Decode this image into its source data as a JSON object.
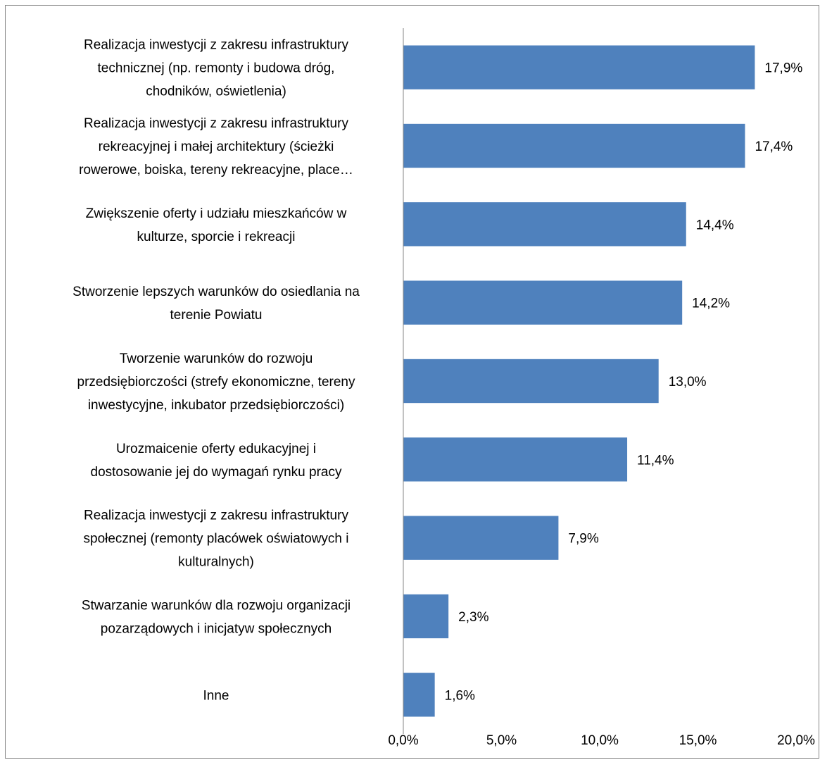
{
  "chart_data": {
    "type": "bar",
    "orientation": "horizontal",
    "title": "",
    "xlabel": "",
    "ylabel": "",
    "categories": [
      [
        "Realizacja inwestycji z zakresu infrastruktury",
        "technicznej (np. remonty i budowa dróg,",
        "chodników, oświetlenia)"
      ],
      [
        "Realizacja inwestycji z zakresu infrastruktury",
        "rekreacyjnej i małej architektury (ścieżki",
        "rowerowe, boiska, tereny rekreacyjne, place…"
      ],
      [
        "Zwiększenie oferty i udziału mieszkańców w",
        "kulturze, sporcie i rekreacji"
      ],
      [
        "Stworzenie lepszych warunków do osiedlania na",
        "terenie Powiatu"
      ],
      [
        "Tworzenie warunków do rozwoju",
        "przedsiębiorczości (strefy ekonomiczne, tereny",
        "inwestycyjne, inkubator przedsiębiorczości)"
      ],
      [
        "Urozmaicenie oferty edukacyjnej i",
        "dostosowanie jej do wymagań rynku pracy"
      ],
      [
        "Realizacja inwestycji z zakresu infrastruktury",
        "społecznej (remonty placówek oświatowych i",
        "kulturalnych)"
      ],
      [
        "Stwarzanie warunków dla rozwoju organizacji",
        "pozarządowych i inicjatyw społecznych"
      ],
      [
        "Inne"
      ]
    ],
    "values": [
      17.9,
      17.4,
      14.4,
      14.2,
      13.0,
      11.4,
      7.9,
      2.3,
      1.6
    ],
    "value_labels": [
      "17,9%",
      "17,4%",
      "14,4%",
      "14,2%",
      "13,0%",
      "11,4%",
      "7,9%",
      "2,3%",
      "1,6%"
    ],
    "xlim": [
      0,
      20
    ],
    "x_ticks": [
      0,
      5,
      10,
      15,
      20
    ],
    "x_tick_labels": [
      "0,0%",
      "5,0%",
      "10,0%",
      "15,0%",
      "20,0%"
    ],
    "grid": false,
    "legend": "none",
    "bar_color": "#4F81BD",
    "axis_color": "#868686"
  }
}
